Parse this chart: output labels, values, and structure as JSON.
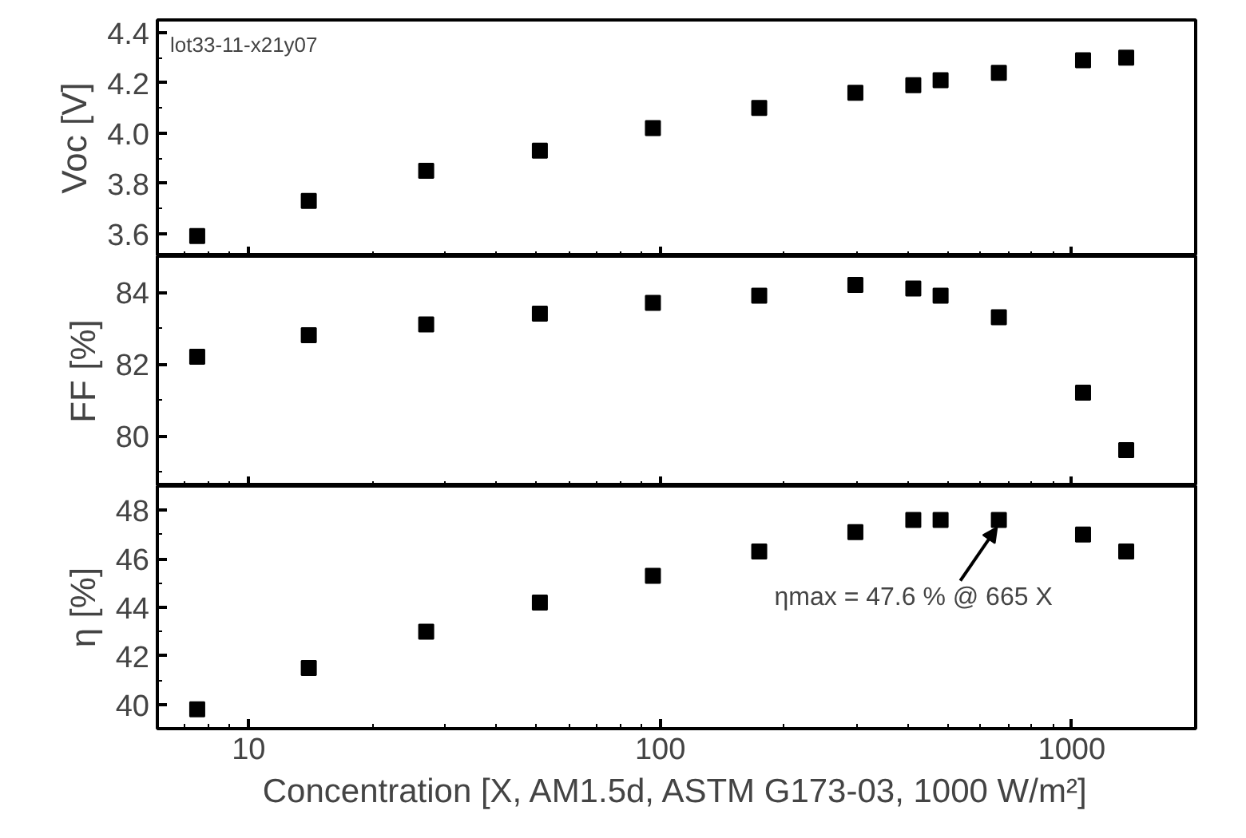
{
  "chart_data": [
    {
      "type": "scatter",
      "ylabel": "Voc [V]",
      "x": [
        7.5,
        14,
        27,
        51,
        96,
        174,
        298,
        412,
        480,
        665,
        1065,
        1356
      ],
      "series": [
        {
          "color": "#000000",
          "values": [
            3.59,
            3.73,
            3.85,
            3.93,
            4.02,
            4.1,
            4.16,
            4.19,
            4.21,
            4.24,
            4.29,
            4.3
          ]
        }
      ],
      "log": "x",
      "xlim": [
        6,
        2000
      ],
      "xticks": [
        10,
        100,
        1000
      ],
      "ylim": [
        3.51,
        4.45
      ],
      "yticks": [
        3.6,
        3.8,
        {
          "value": 4,
          "label": "4.0"
        },
        4.2,
        4.4
      ],
      "tick_labels": "y",
      "grid": false,
      "marker": "square",
      "annotations": [
        "lot33-11-x21y07"
      ]
    },
    {
      "type": "scatter",
      "ylabel": "FF [%]",
      "x": [
        7.5,
        14,
        27,
        51,
        96,
        174,
        298,
        412,
        480,
        665,
        1065,
        1356
      ],
      "series": [
        {
          "color": "#000000",
          "values": [
            82.2,
            82.8,
            83.1,
            83.4,
            83.7,
            83.9,
            84.2,
            84.1,
            83.9,
            83.3,
            81.2,
            79.6
          ]
        }
      ],
      "log": "x",
      "xlim": [
        6,
        2000
      ],
      "xticks": [
        10,
        100,
        1000
      ],
      "ylim": [
        78.6,
        85
      ],
      "yticks": [
        80,
        82,
        84
      ],
      "tick_labels": "y",
      "grid": false,
      "marker": "square"
    },
    {
      "type": "scatter",
      "xlabel": "Concentration [X, AM1.5d, ASTM G173-03, 1000 W/m²]",
      "ylabel": "η [%]",
      "x": [
        7.5,
        14,
        27,
        51,
        96,
        174,
        298,
        412,
        480,
        665,
        1065,
        1356
      ],
      "series": [
        {
          "color": "#000000",
          "values": [
            39.8,
            41.5,
            43.0,
            44.2,
            45.3,
            46.3,
            47.1,
            47.6,
            47.6,
            47.6,
            47.0,
            46.3
          ]
        }
      ],
      "log": "x",
      "xlim": [
        6,
        2000
      ],
      "xticks": [
        10,
        100,
        1000
      ],
      "ylim": [
        39,
        49
      ],
      "yticks": [
        40,
        42,
        44,
        46,
        48
      ],
      "grid": false,
      "marker": "square",
      "annotations": [
        {
          "text": "ηmax = 47.6 % @ 665 X",
          "x": 665,
          "y": 47.6
        }
      ]
    }
  ]
}
